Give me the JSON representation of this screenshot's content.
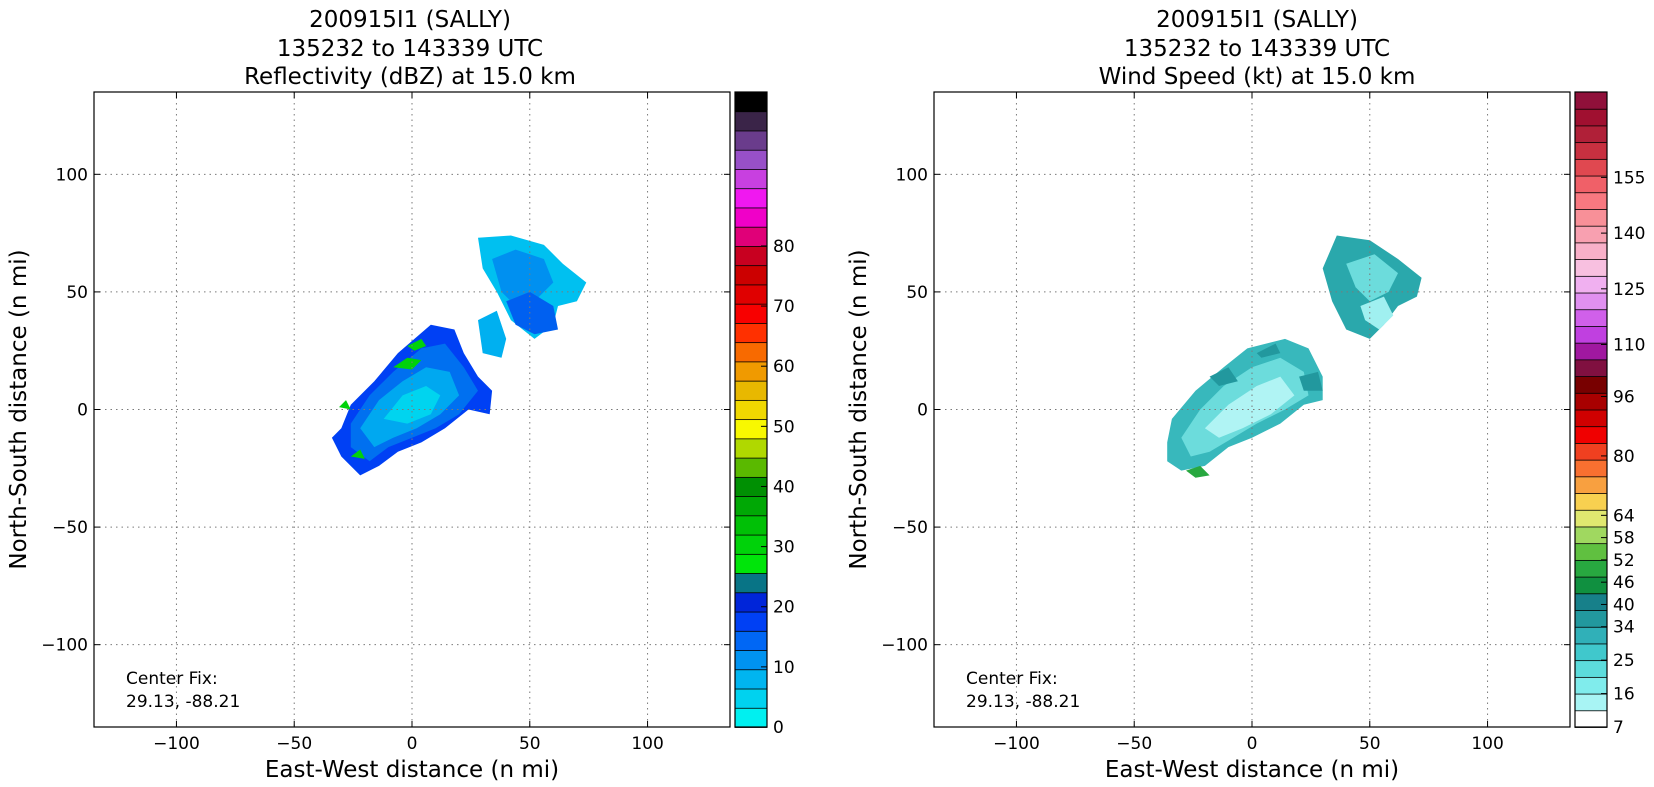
{
  "panels": [
    {
      "title_lines": [
        "200915I1 (SALLY)",
        "135232 to 143339 UTC",
        "Reflectivity (dBZ) at 15.0 km"
      ],
      "xlabel": "East-West distance (n mi)",
      "ylabel": "North-South distance (n mi)",
      "annotation": [
        "Center Fix:",
        "29.13, -88.21"
      ]
    },
    {
      "title_lines": [
        "200915I1 (SALLY)",
        "135232 to 143339 UTC",
        "Wind Speed (kt) at 15.0 km"
      ],
      "xlabel": "East-West distance (n mi)",
      "ylabel": "North-South distance (n mi)",
      "annotation": [
        "Center Fix:",
        "29.13, -88.21"
      ]
    }
  ],
  "chart_data": [
    {
      "type": "heatmap",
      "title": "200915I1 (SALLY) 135232 to 143339 UTC Reflectivity (dBZ) at 15.0 km",
      "xlabel": "East-West distance (n mi)",
      "ylabel": "North-South distance (n mi)",
      "xlim": [
        -135,
        135
      ],
      "ylim": [
        -135,
        135
      ],
      "xticks": [
        -100,
        -50,
        0,
        50,
        100
      ],
      "yticks": [
        -100,
        -50,
        0,
        50,
        100
      ],
      "grid": true,
      "colorbar": {
        "min": 0,
        "max": 80,
        "step": 3.2,
        "ticks": [
          0,
          10,
          20,
          30,
          40,
          50,
          60,
          70,
          80
        ],
        "colors": [
          "#00f0f0",
          "#00d2ef",
          "#00b5f0",
          "#0093f0",
          "#0067f5",
          "#0040f4",
          "#0025d9",
          "#087486",
          "#00e50a",
          "#00d20a",
          "#00c006",
          "#00a805",
          "#009003",
          "#5ab900",
          "#b0d800",
          "#f8f800",
          "#f0d800",
          "#e8b800",
          "#f09a00",
          "#f86a00",
          "#ff3000",
          "#f80000",
          "#e00000",
          "#cc0000",
          "#c80020",
          "#e00078",
          "#f000c8",
          "#f018f0",
          "#c840e0",
          "#9850c8",
          "#6a3c8c",
          "#3a2448",
          "#000000"
        ]
      },
      "echo_regions": [
        {
          "color": "#00c0f0",
          "points": [
            [
              28,
              73
            ],
            [
              42,
              74
            ],
            [
              56,
              70
            ],
            [
              64,
              62
            ],
            [
              74,
              54
            ],
            [
              70,
              46
            ],
            [
              62,
              44
            ],
            [
              60,
              36
            ],
            [
              52,
              30
            ],
            [
              42,
              38
            ],
            [
              36,
              50
            ],
            [
              30,
              60
            ]
          ]
        },
        {
          "color": "#0090f0",
          "points": [
            [
              34,
              64
            ],
            [
              44,
              68
            ],
            [
              56,
              64
            ],
            [
              60,
              54
            ],
            [
              52,
              46
            ],
            [
              44,
              44
            ],
            [
              38,
              50
            ]
          ]
        },
        {
          "color": "#0060f0",
          "points": [
            [
              40,
              46
            ],
            [
              50,
              50
            ],
            [
              60,
              44
            ],
            [
              62,
              34
            ],
            [
              52,
              32
            ],
            [
              44,
              36
            ]
          ]
        },
        {
          "color": "#00b0f0",
          "points": [
            [
              28,
              38
            ],
            [
              36,
              42
            ],
            [
              40,
              30
            ],
            [
              38,
              22
            ],
            [
              30,
              24
            ]
          ]
        },
        {
          "color": "#0040f4",
          "points": [
            [
              -30,
              -8
            ],
            [
              -26,
              2
            ],
            [
              -16,
              12
            ],
            [
              -6,
              24
            ],
            [
              8,
              36
            ],
            [
              18,
              34
            ],
            [
              22,
              24
            ],
            [
              28,
              14
            ],
            [
              34,
              8
            ],
            [
              33,
              -2
            ],
            [
              24,
              0
            ],
            [
              14,
              -8
            ],
            [
              4,
              -14
            ],
            [
              -6,
              -18
            ],
            [
              -14,
              -24
            ],
            [
              -22,
              -28
            ],
            [
              -30,
              -20
            ],
            [
              -34,
              -12
            ]
          ]
        },
        {
          "color": "#0070f0",
          "points": [
            [
              -26,
              -6
            ],
            [
              -18,
              6
            ],
            [
              -8,
              16
            ],
            [
              4,
              26
            ],
            [
              14,
              28
            ],
            [
              22,
              18
            ],
            [
              28,
              8
            ],
            [
              20,
              -2
            ],
            [
              10,
              -8
            ],
            [
              0,
              -12
            ],
            [
              -10,
              -16
            ],
            [
              -18,
              -22
            ],
            [
              -26,
              -16
            ]
          ]
        },
        {
          "color": "#00a8f0",
          "points": [
            [
              -22,
              -8
            ],
            [
              -14,
              4
            ],
            [
              -4,
              12
            ],
            [
              6,
              18
            ],
            [
              16,
              16
            ],
            [
              20,
              6
            ],
            [
              12,
              -2
            ],
            [
              2,
              -8
            ],
            [
              -8,
              -12
            ],
            [
              -16,
              -16
            ]
          ]
        },
        {
          "color": "#00d4ef",
          "points": [
            [
              -12,
              -4
            ],
            [
              -4,
              6
            ],
            [
              6,
              10
            ],
            [
              12,
              6
            ],
            [
              8,
              -2
            ],
            [
              -2,
              -6
            ]
          ]
        },
        {
          "color": "#00d20a",
          "points": [
            [
              -8,
              18
            ],
            [
              -2,
              22
            ],
            [
              4,
              21
            ],
            [
              0,
              17
            ]
          ]
        },
        {
          "color": "#00d20a",
          "points": [
            [
              -2,
              27
            ],
            [
              4,
              30
            ],
            [
              6,
              27
            ],
            [
              1,
              25
            ]
          ]
        },
        {
          "color": "#00d20a",
          "points": [
            [
              -31,
              1
            ],
            [
              -28,
              4
            ],
            [
              -26,
              0
            ]
          ]
        },
        {
          "color": "#00d20a",
          "points": [
            [
              -26,
              -20
            ],
            [
              -22,
              -17
            ],
            [
              -20,
              -21
            ]
          ]
        }
      ],
      "center_fix": "29.13, -88.21"
    },
    {
      "type": "heatmap",
      "title": "200915I1 (SALLY) 135232 to 143339 UTC Wind Speed (kt) at 15.0 km",
      "xlabel": "East-West distance (n mi)",
      "ylabel": "North-South distance (n mi)",
      "xlim": [
        -135,
        135
      ],
      "ylim": [
        -135,
        135
      ],
      "xticks": [
        -100,
        -50,
        0,
        50,
        100
      ],
      "yticks": [
        -100,
        -50,
        0,
        50,
        100
      ],
      "grid": true,
      "colorbar": {
        "min": 7,
        "max": 160,
        "step": 4.5,
        "ticks": [
          7,
          16,
          25,
          34,
          40,
          46,
          52,
          58,
          64,
          80,
          96,
          110,
          125,
          140,
          155
        ],
        "colors": [
          "#ffffff",
          "#a8f4f4",
          "#80ecec",
          "#5cdcdc",
          "#40c8cc",
          "#30b0b8",
          "#22989e",
          "#17808a",
          "#109040",
          "#28a840",
          "#60c040",
          "#a0d860",
          "#e0e870",
          "#f8d050",
          "#f8a040",
          "#f87030",
          "#f04020",
          "#f00000",
          "#d00000",
          "#a80000",
          "#780000",
          "#801040",
          "#a018a0",
          "#c040e0",
          "#d060ea",
          "#e090f0",
          "#f0b0f0",
          "#f8c0e0",
          "#f8b0c8",
          "#f8a0b0",
          "#f89098",
          "#f87880",
          "#f06068",
          "#e04850",
          "#c83040",
          "#b02038",
          "#a01030",
          "#90103a"
        ]
      },
      "echo_regions": [
        {
          "color": "#2aa8ac",
          "points": [
            [
              36,
              74
            ],
            [
              50,
              72
            ],
            [
              62,
              64
            ],
            [
              72,
              56
            ],
            [
              70,
              48
            ],
            [
              62,
              44
            ],
            [
              56,
              36
            ],
            [
              50,
              30
            ],
            [
              40,
              34
            ],
            [
              34,
              46
            ],
            [
              30,
              60
            ]
          ]
        },
        {
          "color": "#6cdcdc",
          "points": [
            [
              40,
              62
            ],
            [
              52,
              66
            ],
            [
              62,
              58
            ],
            [
              58,
              50
            ],
            [
              50,
              46
            ],
            [
              44,
              52
            ]
          ]
        },
        {
          "color": "#a0f0f0",
          "points": [
            [
              46,
              44
            ],
            [
              56,
              48
            ],
            [
              60,
              40
            ],
            [
              54,
              34
            ],
            [
              48,
              38
            ]
          ]
        },
        {
          "color": "#38b8bc",
          "points": [
            [
              -36,
              -14
            ],
            [
              -34,
              -4
            ],
            [
              -24,
              8
            ],
            [
              -12,
              18
            ],
            [
              -2,
              26
            ],
            [
              14,
              30
            ],
            [
              24,
              26
            ],
            [
              30,
              14
            ],
            [
              30,
              4
            ],
            [
              22,
              2
            ],
            [
              12,
              -6
            ],
            [
              0,
              -12
            ],
            [
              -10,
              -16
            ],
            [
              -20,
              -24
            ],
            [
              -30,
              -26
            ],
            [
              -36,
              -22
            ]
          ]
        },
        {
          "color": "#6cdcdc",
          "points": [
            [
              -30,
              -12
            ],
            [
              -22,
              0
            ],
            [
              -12,
              10
            ],
            [
              0,
              18
            ],
            [
              12,
              22
            ],
            [
              22,
              16
            ],
            [
              24,
              6
            ],
            [
              14,
              0
            ],
            [
              2,
              -6
            ],
            [
              -8,
              -12
            ],
            [
              -18,
              -18
            ],
            [
              -26,
              -20
            ]
          ]
        },
        {
          "color": "#b0f4f4",
          "points": [
            [
              -20,
              -8
            ],
            [
              -10,
              2
            ],
            [
              2,
              10
            ],
            [
              12,
              14
            ],
            [
              18,
              6
            ],
            [
              8,
              -2
            ],
            [
              -4,
              -8
            ],
            [
              -14,
              -12
            ]
          ]
        },
        {
          "color": "#22989e",
          "points": [
            [
              -18,
              14
            ],
            [
              -10,
              18
            ],
            [
              -6,
              12
            ],
            [
              -14,
              10
            ]
          ]
        },
        {
          "color": "#22989e",
          "points": [
            [
              20,
              14
            ],
            [
              28,
              16
            ],
            [
              30,
              8
            ],
            [
              22,
              8
            ]
          ]
        },
        {
          "color": "#22989e",
          "points": [
            [
              2,
              24
            ],
            [
              10,
              28
            ],
            [
              12,
              24
            ],
            [
              4,
              22
            ]
          ]
        },
        {
          "color": "#28a840",
          "points": [
            [
              -28,
              -26
            ],
            [
              -22,
              -24
            ],
            [
              -18,
              -28
            ],
            [
              -24,
              -29
            ]
          ]
        }
      ],
      "center_fix": "29.13, -88.21"
    }
  ]
}
